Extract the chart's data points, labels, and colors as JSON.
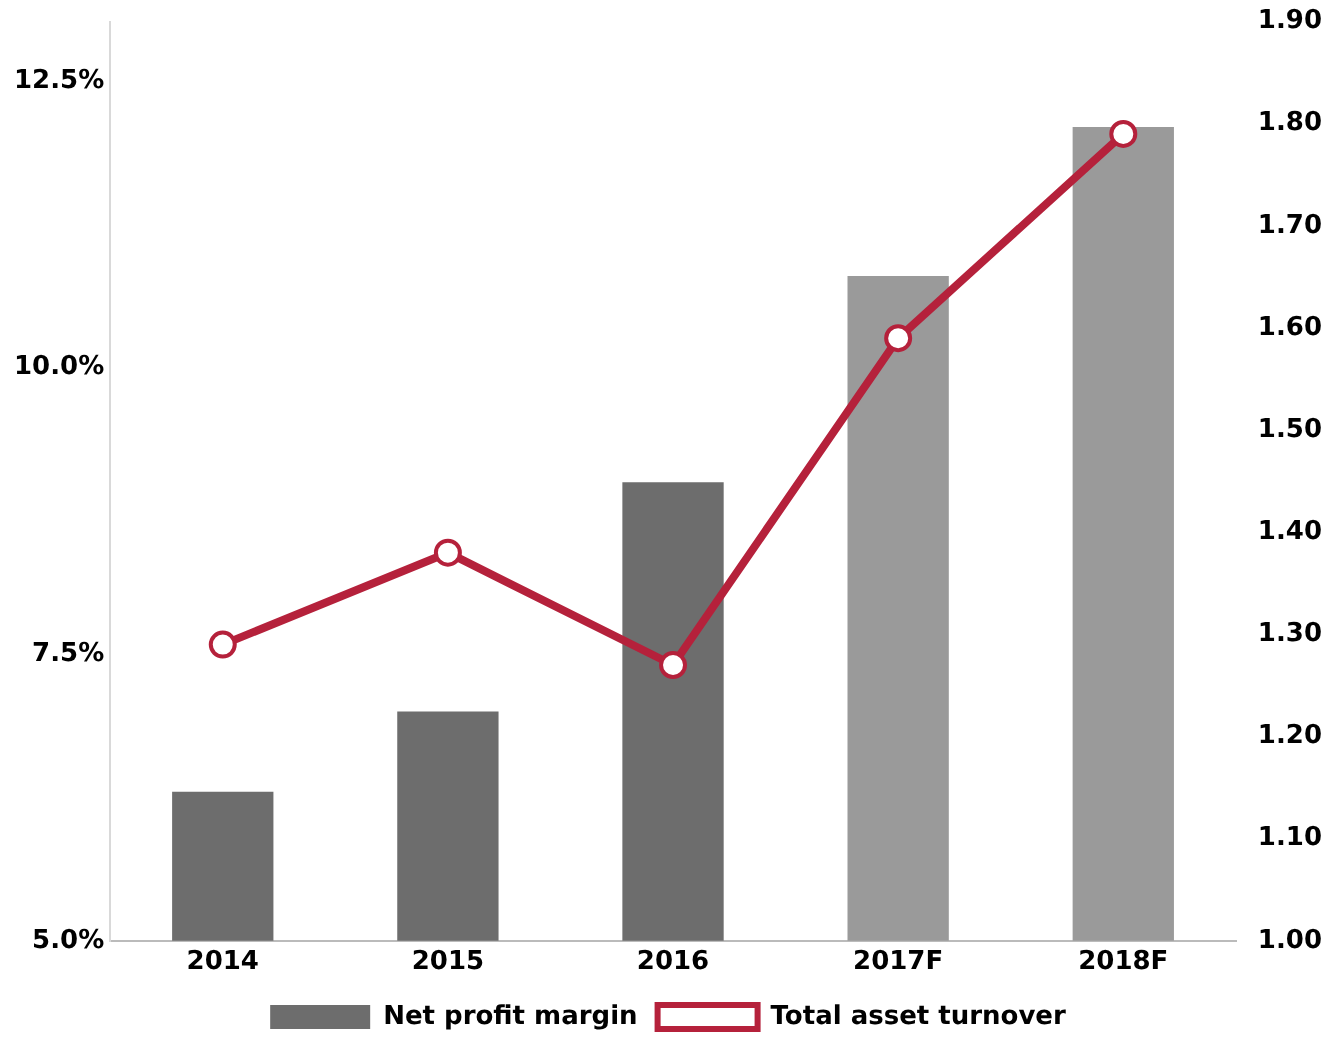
{
  "chart_data": {
    "type": "bar",
    "categories": [
      "2014",
      "2015",
      "2016",
      "2017F",
      "2018F"
    ],
    "series": [
      {
        "name": "Net profit margin",
        "colors": [
          "#6d6d6d",
          "#6d6d6d",
          "#6d6d6d",
          "#9a9a9a",
          "#9a9a9a"
        ],
        "color": "#6d6d6d",
        "values": [
          6.3,
          7.0,
          9.0,
          10.8,
          12.1
        ]
      },
      {
        "name": "Total asset turnover",
        "type": "line",
        "axis": "y2",
        "color": "#b5213b",
        "marker": "circle",
        "values": [
          1.29,
          1.38,
          1.27,
          1.59,
          1.79
        ]
      }
    ],
    "ylim": [
      5,
      13.02
    ],
    "yticks": [
      {
        "value": 5,
        "label": "5.0%"
      },
      {
        "value": 7.5,
        "label": "7.5%"
      },
      {
        "value": 10,
        "label": "10.0%"
      },
      {
        "value": 12.5,
        "label": "12.5%"
      }
    ],
    "y2lim": [
      1.0,
      1.9
    ],
    "y2ticks": [
      {
        "value": 1.0,
        "label": "1.00"
      },
      {
        "value": 1.1,
        "label": "1.10"
      },
      {
        "value": 1.2,
        "label": "1.20"
      },
      {
        "value": 1.3,
        "label": "1.30"
      },
      {
        "value": 1.4,
        "label": "1.40"
      },
      {
        "value": 1.5,
        "label": "1.50"
      },
      {
        "value": 1.6,
        "label": "1.60"
      },
      {
        "value": 1.7,
        "label": "1.70"
      },
      {
        "value": 1.8,
        "label": "1.80"
      },
      {
        "value": 1.9,
        "label": "1.90"
      }
    ],
    "grid": false,
    "legend": "bottom"
  }
}
